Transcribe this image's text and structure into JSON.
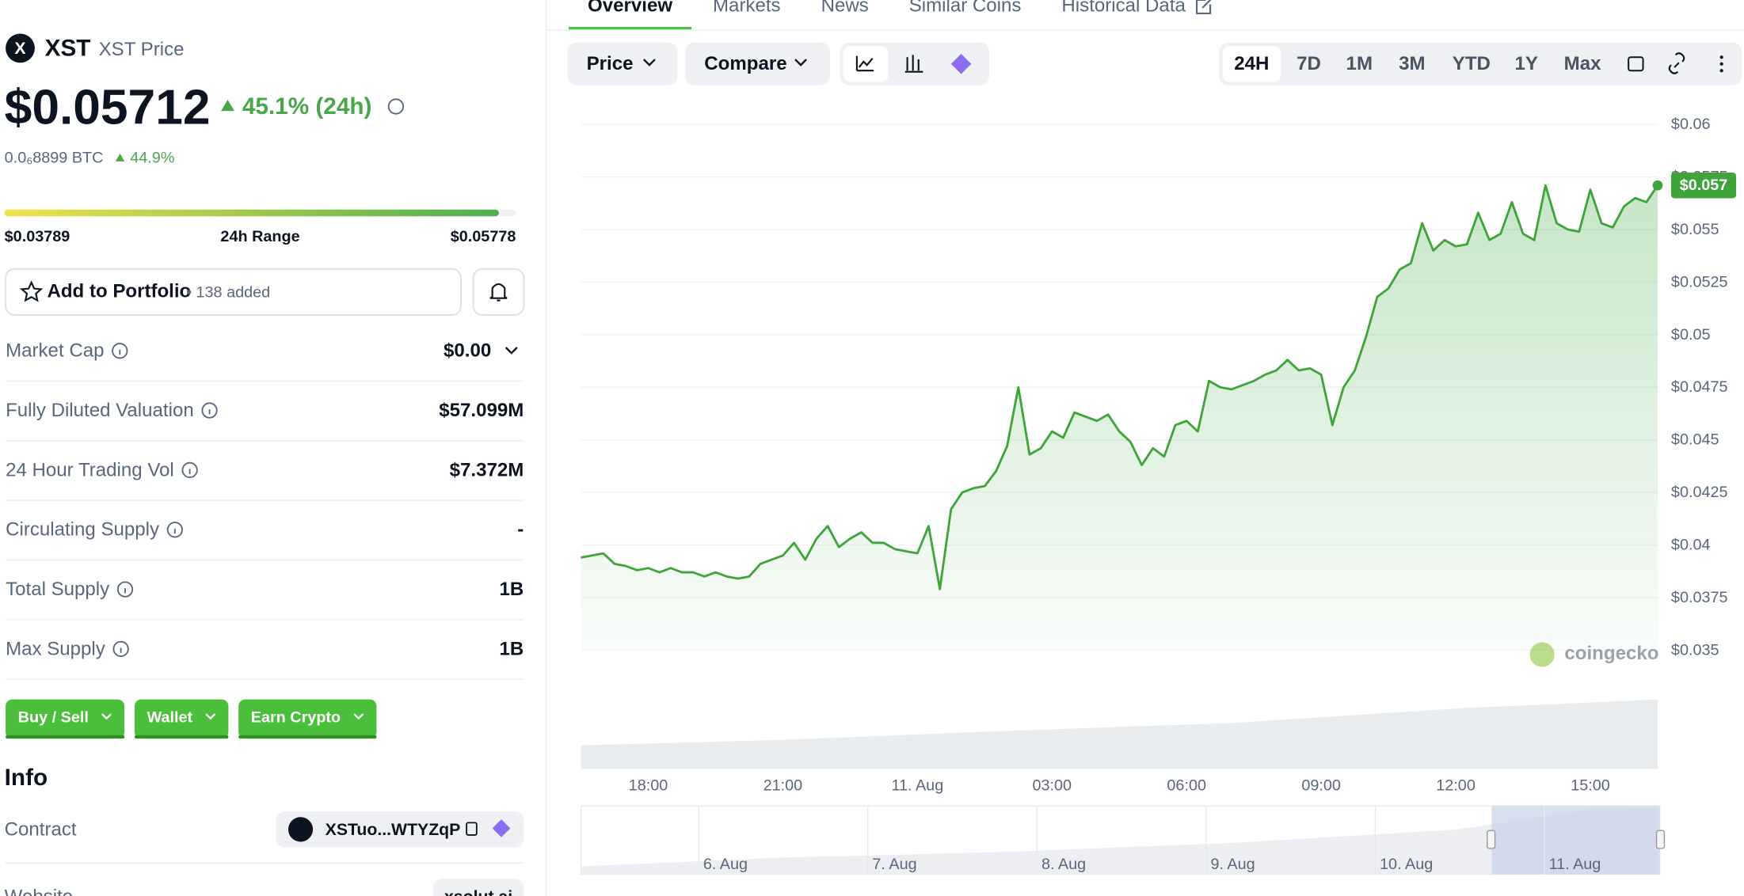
{
  "header": {
    "symbol": "XST",
    "name": "XST Price",
    "price": "$0.05712",
    "change": "45.1% (24h)",
    "btc_price": "0.0₆8899 BTC",
    "btc_change": "44.9%"
  },
  "range": {
    "low": "$0.03789",
    "label": "24h Range",
    "high": "$0.05778"
  },
  "portfolio": {
    "button": "Add to Portfolio",
    "count": "• 138 added"
  },
  "stats": [
    {
      "label": "Market Cap",
      "value": "$0.00"
    },
    {
      "label": "Fully Diluted Valuation",
      "value": "$57.099M"
    },
    {
      "label": "24 Hour Trading Vol",
      "value": "$7.372M"
    },
    {
      "label": "Circulating Supply",
      "value": "-"
    },
    {
      "label": "Total Supply",
      "value": "1B"
    },
    {
      "label": "Max Supply",
      "value": "1B"
    }
  ],
  "actions": [
    "Buy / Sell",
    "Wallet",
    "Earn Crypto"
  ],
  "info": {
    "title": "Info",
    "rows": [
      {
        "label": "Contract",
        "value": "XSTuo...WTYZqP"
      },
      {
        "label": "Website",
        "value": "xsolut.ai"
      }
    ]
  },
  "tabs": [
    "Overview",
    "Markets",
    "News",
    "Similar Coins",
    "Historical Data"
  ],
  "controls": {
    "price": "Price",
    "compare": "Compare",
    "ranges": [
      "24H",
      "7D",
      "1M",
      "3M",
      "YTD",
      "1Y",
      "Max"
    ]
  },
  "chart_data": {
    "type": "line",
    "color": "#3fa53a",
    "categories": [
      null,
      null,
      null,
      null,
      null,
      null,
      "18:00",
      null,
      null,
      null,
      null,
      null,
      null,
      null,
      null,
      null,
      null,
      null,
      "21:00",
      null,
      null,
      null,
      null,
      null,
      null,
      null,
      null,
      null,
      null,
      null,
      "11. Aug",
      null,
      null,
      null,
      null,
      null,
      null,
      null,
      null,
      null,
      null,
      null,
      "03:00",
      null,
      null,
      null,
      null,
      null,
      null,
      null,
      null,
      null,
      null,
      null,
      "06:00",
      null,
      null,
      null,
      null,
      null,
      null,
      null,
      null,
      null,
      null,
      null,
      "09:00",
      null,
      null,
      null,
      null,
      null,
      null,
      null,
      null,
      null,
      null,
      null,
      "12:00",
      null,
      null,
      null,
      null,
      null,
      null,
      null,
      null,
      null,
      null,
      null,
      "15:00",
      null,
      null,
      null,
      null,
      null,
      null
    ],
    "values": [
      0.0394,
      0.0395,
      0.0396,
      0.0391,
      0.039,
      0.0388,
      0.0389,
      0.0387,
      0.0389,
      0.0387,
      0.0387,
      0.0385,
      0.0387,
      0.0385,
      0.0384,
      0.0385,
      0.0391,
      0.0393,
      0.0395,
      0.0401,
      0.0393,
      0.0403,
      0.0409,
      0.0399,
      0.0403,
      0.0406,
      0.0401,
      0.0401,
      0.0398,
      0.0397,
      0.0396,
      0.0409,
      0.0379,
      0.0417,
      0.0425,
      0.0427,
      0.0428,
      0.0435,
      0.0447,
      0.0475,
      0.0443,
      0.0446,
      0.0454,
      0.0451,
      0.0463,
      0.0461,
      0.0459,
      0.0462,
      0.0454,
      0.0449,
      0.0438,
      0.0446,
      0.0442,
      0.0457,
      0.0459,
      0.0454,
      0.0478,
      0.0475,
      0.0474,
      0.0476,
      0.0478,
      0.0481,
      0.0483,
      0.0488,
      0.0483,
      0.0484,
      0.0481,
      0.0457,
      0.0475,
      0.0483,
      0.0499,
      0.0518,
      0.0522,
      0.0531,
      0.0534,
      0.0553,
      0.054,
      0.0545,
      0.0542,
      0.0543,
      0.0558,
      0.0545,
      0.0548,
      0.0563,
      0.0548,
      0.0545,
      0.0571,
      0.0553,
      0.055,
      0.0549,
      0.0569,
      0.0553,
      0.0551,
      0.0561,
      0.0565,
      0.0563,
      0.0571
    ],
    "current_label": "$0.057",
    "ylim": [
      0.035,
      0.06
    ],
    "yticks": [
      {
        "value": 0.035,
        "label": "$0.035"
      },
      {
        "value": 0.0375,
        "label": "$0.0375"
      },
      {
        "value": 0.04,
        "label": "$0.04"
      },
      {
        "value": 0.0425,
        "label": "$0.0425"
      },
      {
        "value": 0.045,
        "label": "$0.045"
      },
      {
        "value": 0.0475,
        "label": "$0.0475"
      },
      {
        "value": 0.05,
        "label": "$0.05"
      },
      {
        "value": 0.0525,
        "label": "$0.0525"
      },
      {
        "value": 0.055,
        "label": "$0.055"
      },
      {
        "value": 0.0575,
        "label": "$0.0575"
      },
      {
        "value": 0.06,
        "label": "$0.06"
      }
    ],
    "grid": true,
    "watermark": "coingecko",
    "navigator": [
      "6. Aug",
      "7. Aug",
      "8. Aug",
      "9. Aug",
      "10. Aug",
      "11. Aug"
    ]
  }
}
